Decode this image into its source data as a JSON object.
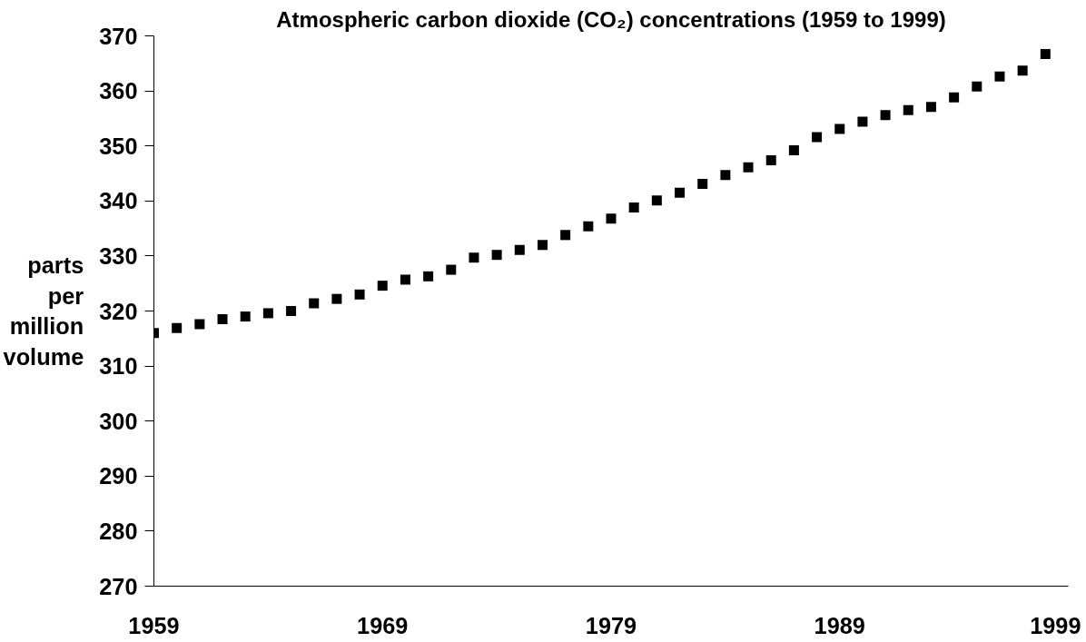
{
  "chart_data": {
    "type": "scatter",
    "title": "Atmospheric carbon dioxide (CO₂) concentrations (1959 to 1999)",
    "ylabel": "parts\nper\nmillion\nvolume",
    "x": [
      1959,
      1960,
      1961,
      1962,
      1963,
      1964,
      1965,
      1966,
      1967,
      1968,
      1969,
      1970,
      1971,
      1972,
      1973,
      1974,
      1975,
      1976,
      1977,
      1978,
      1979,
      1980,
      1981,
      1982,
      1983,
      1984,
      1985,
      1986,
      1987,
      1988,
      1989,
      1990,
      1991,
      1992,
      1993,
      1994,
      1995,
      1996,
      1997,
      1998
    ],
    "series": [
      {
        "color": "#000000",
        "values": [
          316.0,
          316.9,
          317.6,
          318.5,
          319.0,
          319.6,
          320.0,
          321.4,
          322.2,
          323.0,
          324.6,
          325.7,
          326.3,
          327.5,
          329.7,
          330.2,
          331.1,
          332.0,
          333.8,
          335.4,
          336.8,
          338.8,
          340.1,
          341.5,
          343.1,
          344.7,
          346.1,
          347.4,
          349.2,
          351.6,
          353.1,
          354.4,
          355.6,
          356.5,
          357.1,
          358.8,
          360.8,
          362.6,
          363.7,
          366.7
        ]
      }
    ],
    "xlim": [
      1959,
      1999
    ],
    "xticks": [
      1959,
      1969,
      1979,
      1989,
      1999
    ],
    "ylim": [
      270,
      370
    ],
    "yticks": [
      270,
      280,
      290,
      300,
      310,
      320,
      330,
      340,
      350,
      360,
      370
    ],
    "marker": "square",
    "grid": false
  }
}
